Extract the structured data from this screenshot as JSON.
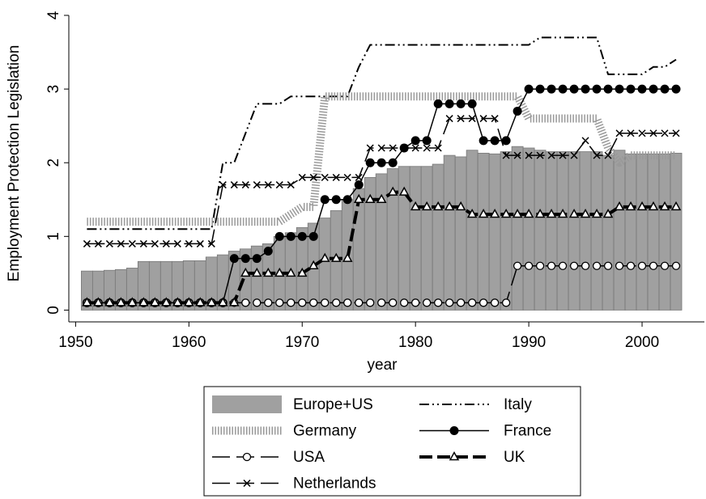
{
  "chart_data": {
    "type": "bar+line",
    "xlabel": "year",
    "ylabel": "Employment Protection Legislation",
    "xlim": [
      1949.4,
      2005.5
    ],
    "ylim": [
      -0.16,
      4.0
    ],
    "xticks": [
      1950,
      1960,
      1970,
      1980,
      1990,
      2000
    ],
    "yticks": [
      0,
      1,
      2,
      3,
      4
    ],
    "legend": "bottom",
    "x": [
      1951,
      1952,
      1953,
      1954,
      1955,
      1956,
      1957,
      1958,
      1959,
      1960,
      1961,
      1962,
      1963,
      1964,
      1965,
      1966,
      1967,
      1968,
      1969,
      1970,
      1971,
      1972,
      1973,
      1974,
      1975,
      1976,
      1977,
      1978,
      1979,
      1980,
      1981,
      1982,
      1983,
      1984,
      1985,
      1986,
      1987,
      1988,
      1989,
      1990,
      1991,
      1992,
      1993,
      1994,
      1995,
      1996,
      1997,
      1998,
      1999,
      2000,
      2001,
      2002,
      2003
    ],
    "series": [
      {
        "name": "Europe+US",
        "kind": "bar",
        "color": "#a0a0a0",
        "values": [
          0.53,
          0.53,
          0.54,
          0.55,
          0.57,
          0.66,
          0.66,
          0.66,
          0.66,
          0.67,
          0.67,
          0.72,
          0.75,
          0.8,
          0.83,
          0.87,
          0.9,
          1.0,
          1.05,
          1.12,
          1.18,
          1.25,
          1.35,
          1.5,
          1.65,
          1.8,
          1.85,
          1.92,
          1.95,
          1.95,
          1.95,
          1.98,
          2.1,
          2.08,
          2.17,
          2.13,
          2.12,
          2.15,
          2.22,
          2.2,
          2.17,
          2.15,
          2.15,
          2.15,
          2.15,
          2.15,
          2.1,
          2.17,
          2.12,
          2.12,
          2.12,
          2.12,
          2.13
        ]
      },
      {
        "name": "Italy",
        "kind": "line",
        "color": "#000000",
        "dash": "12 4 2 4 2 4",
        "width": 2,
        "marker": "none",
        "values": [
          1.1,
          1.1,
          1.1,
          1.1,
          1.1,
          1.1,
          1.1,
          1.1,
          1.1,
          1.1,
          1.1,
          1.1,
          2.0,
          2.0,
          2.4,
          2.8,
          2.8,
          2.8,
          2.9,
          2.9,
          2.9,
          2.9,
          2.9,
          2.9,
          3.3,
          3.6,
          3.6,
          3.6,
          3.6,
          3.6,
          3.6,
          3.6,
          3.6,
          3.6,
          3.6,
          3.6,
          3.6,
          3.6,
          3.6,
          3.6,
          3.7,
          3.7,
          3.7,
          3.7,
          3.7,
          3.7,
          3.2,
          3.2,
          3.2,
          3.2,
          3.3,
          3.3,
          3.4
        ]
      },
      {
        "name": "Germany",
        "kind": "line",
        "color": "#999999",
        "dash": "1.5 2",
        "width": 10,
        "marker": "none",
        "values": [
          1.2,
          1.2,
          1.2,
          1.2,
          1.2,
          1.2,
          1.2,
          1.2,
          1.2,
          1.2,
          1.2,
          1.2,
          1.2,
          1.2,
          1.2,
          1.2,
          1.2,
          1.2,
          1.3,
          1.4,
          1.4,
          2.9,
          2.9,
          2.9,
          2.9,
          2.9,
          2.9,
          2.9,
          2.9,
          2.9,
          2.9,
          2.9,
          2.9,
          2.9,
          2.9,
          2.9,
          2.9,
          2.9,
          2.9,
          2.6,
          2.6,
          2.6,
          2.6,
          2.6,
          2.6,
          2.6,
          2.2,
          2.0,
          2.1,
          2.1,
          2.1,
          2.1,
          2.1
        ]
      },
      {
        "name": "France",
        "kind": "line",
        "color": "#000000",
        "dash": "none",
        "width": 1.5,
        "marker": "dot",
        "values": [
          0.1,
          0.1,
          0.1,
          0.1,
          0.1,
          0.1,
          0.1,
          0.1,
          0.1,
          0.1,
          0.1,
          0.1,
          0.1,
          0.7,
          0.7,
          0.7,
          0.8,
          1.0,
          1.0,
          1.0,
          1.0,
          1.5,
          1.5,
          1.5,
          1.7,
          2.0,
          2.0,
          2.0,
          2.2,
          2.3,
          2.3,
          2.8,
          2.8,
          2.8,
          2.8,
          2.3,
          2.3,
          2.3,
          2.7,
          3.0,
          3.0,
          3.0,
          3.0,
          3.0,
          3.0,
          3.0,
          3.0,
          3.0,
          3.0,
          3.0,
          3.0,
          3.0,
          3.0
        ]
      },
      {
        "name": "USA",
        "kind": "line",
        "color": "#000000",
        "dash": "22 8",
        "width": 1.5,
        "marker": "circle",
        "values": [
          0.1,
          0.1,
          0.1,
          0.1,
          0.1,
          0.1,
          0.1,
          0.1,
          0.1,
          0.1,
          0.1,
          0.1,
          0.1,
          0.1,
          0.1,
          0.1,
          0.1,
          0.1,
          0.1,
          0.1,
          0.1,
          0.1,
          0.1,
          0.1,
          0.1,
          0.1,
          0.1,
          0.1,
          0.1,
          0.1,
          0.1,
          0.1,
          0.1,
          0.1,
          0.1,
          0.1,
          0.1,
          0.1,
          0.6,
          0.6,
          0.6,
          0.6,
          0.6,
          0.6,
          0.6,
          0.6,
          0.6,
          0.6,
          0.6,
          0.6,
          0.6,
          0.6,
          0.6
        ]
      },
      {
        "name": "UK",
        "kind": "line",
        "color": "#000000",
        "dash": "16 6",
        "width": 4,
        "marker": "triangle",
        "values": [
          0.1,
          0.1,
          0.1,
          0.1,
          0.1,
          0.1,
          0.1,
          0.1,
          0.1,
          0.1,
          0.1,
          0.1,
          0.1,
          0.1,
          0.5,
          0.5,
          0.5,
          0.5,
          0.5,
          0.5,
          0.6,
          0.7,
          0.7,
          0.7,
          1.5,
          1.5,
          1.5,
          1.6,
          1.6,
          1.4,
          1.4,
          1.4,
          1.4,
          1.4,
          1.3,
          1.3,
          1.3,
          1.3,
          1.3,
          1.3,
          1.3,
          1.3,
          1.3,
          1.3,
          1.3,
          1.3,
          1.3,
          1.4,
          1.4,
          1.4,
          1.4,
          1.4,
          1.4
        ]
      },
      {
        "name": "Netherlands",
        "kind": "line",
        "color": "#000000",
        "dash": "22 8",
        "width": 1.5,
        "marker": "cross",
        "values": [
          0.9,
          0.9,
          0.9,
          0.9,
          0.9,
          0.9,
          0.9,
          0.9,
          0.9,
          0.9,
          0.9,
          0.9,
          1.7,
          1.7,
          1.7,
          1.7,
          1.7,
          1.7,
          1.7,
          1.8,
          1.8,
          1.8,
          1.8,
          1.8,
          1.8,
          2.2,
          2.2,
          2.2,
          2.2,
          2.2,
          2.2,
          2.2,
          2.6,
          2.6,
          2.6,
          2.6,
          2.6,
          2.1,
          2.1,
          2.1,
          2.1,
          2.1,
          2.1,
          2.1,
          2.3,
          2.1,
          2.1,
          2.4,
          2.4,
          2.4,
          2.4,
          2.4,
          2.4
        ]
      }
    ]
  }
}
